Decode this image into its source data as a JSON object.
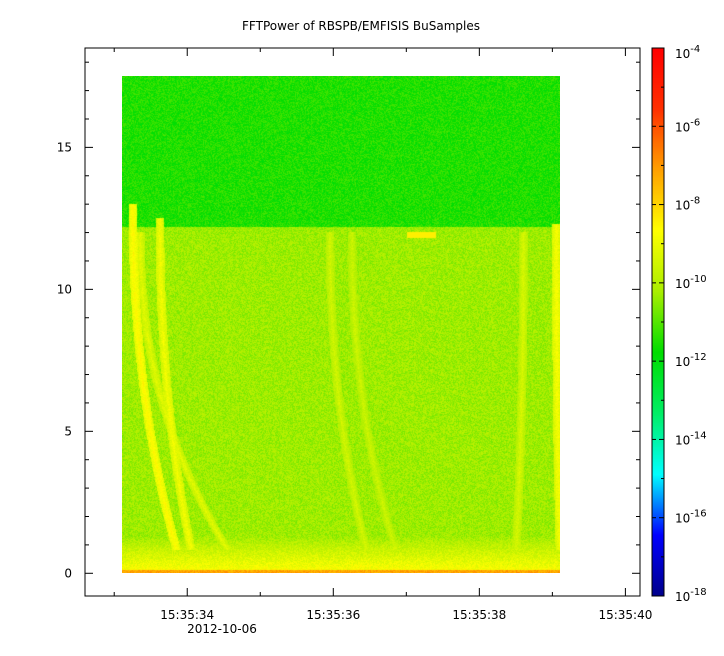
{
  "chart_data": {
    "type": "heatmap",
    "title": "FFTPower of RBSPB/EMFISIS  BuSamples",
    "xlabel": "",
    "ylabel": "",
    "x_axis": {
      "type": "time",
      "range": [
        "15:35:32.6",
        "15:35:40.2"
      ],
      "ticks": [
        "15:35:34",
        "15:35:36",
        "15:35:38",
        "15:35:40"
      ],
      "tick_values_s": [
        34,
        36,
        38,
        40
      ],
      "minor_tick_values_s": [
        33,
        35,
        37,
        39
      ],
      "date_label": "2012-10-06"
    },
    "y_axis": {
      "range": [
        -0.8,
        18.5
      ],
      "ticks": [
        0,
        5,
        10,
        15
      ]
    },
    "data_extent": {
      "x_start": "15:35:33.1",
      "x_end": "15:35:39.1",
      "x_start_s": 33.1,
      "x_end_s": 39.1,
      "y_min": 0,
      "y_max": 17.5
    },
    "colorbar": {
      "scale": "log",
      "range": [
        1e-18,
        0.0001
      ],
      "tick_labels": [
        "10",
        "10",
        "10",
        "10",
        "10",
        "10",
        "10",
        "10"
      ],
      "tick_exponents": [
        "-4",
        "-6",
        "-8",
        "-10",
        "-12",
        "-14",
        "-16",
        "-18"
      ],
      "tick_exp_values": [
        -4,
        -6,
        -8,
        -10,
        -12,
        -14,
        -16,
        -18
      ],
      "colors": [
        "#00008b",
        "#0000ff",
        "#00ffff",
        "#00ee66",
        "#00dd00",
        "#aaee00",
        "#ffff00",
        "#ffa000",
        "#ff3000",
        "#ff0000"
      ]
    },
    "field_levels": {
      "upper_band_log10": -11.5,
      "lower_band_log10": -10.3,
      "upper_band_top": 17.5,
      "band_boundary": 12.2,
      "low_frequency_enhancement_below": 1.3
    },
    "features": [
      {
        "kind": "dispersed-whistler",
        "t0_s": 33.25,
        "t1_s": 33.85,
        "f_top": 13,
        "level_log10": -8.6
      },
      {
        "kind": "dispersed-whistler",
        "t0_s": 33.62,
        "t1_s": 34.05,
        "f_top": 12.5,
        "level_log10": -8.9
      },
      {
        "kind": "dispersed-whistler",
        "t0_s": 33.35,
        "t1_s": 34.55,
        "f_top": 12,
        "level_log10": -9.2
      },
      {
        "kind": "dispersed-whistler",
        "t0_s": 35.95,
        "t1_s": 36.45,
        "f_top": 12,
        "level_log10": -9.5
      },
      {
        "kind": "dispersed-whistler",
        "t0_s": 36.25,
        "t1_s": 36.85,
        "f_top": 12,
        "level_log10": -9.6
      },
      {
        "kind": "dispersed-whistler",
        "t0_s": 38.6,
        "t1_s": 38.5,
        "f_top": 12,
        "level_log10": -9.4
      },
      {
        "kind": "dispersed-whistler",
        "t0_s": 39.05,
        "t1_s": 39.1,
        "f_top": 12.3,
        "level_log10": -8.8
      },
      {
        "kind": "narrowband-line",
        "t0_s": 37.0,
        "t1_s": 37.4,
        "f": 11.9,
        "level_log10": -8.4
      }
    ]
  }
}
